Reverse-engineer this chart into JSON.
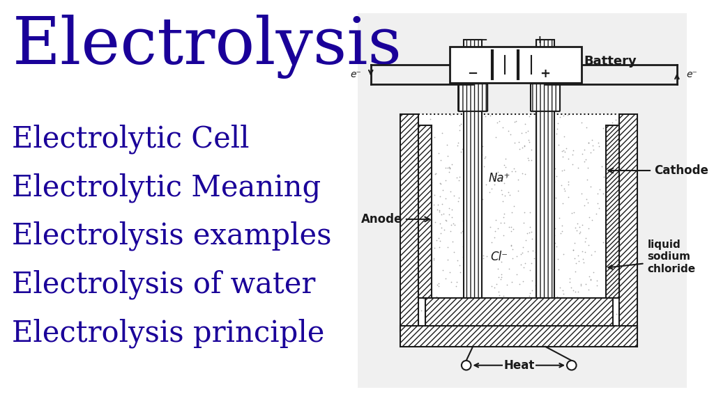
{
  "title": "Electrolysis",
  "title_color": "#1a0099",
  "title_fontsize": 68,
  "bg_color": "#ffffff",
  "text_color": "#1a0099",
  "menu_items": [
    "Electrolytic Cell",
    "Electrolytic Meaning",
    "Electrolysis examples",
    "Electrolysis of water",
    "Electrolysis principle"
  ],
  "menu_fontsize": 30,
  "diagram_bg": "#e8e8e8",
  "black": "#1a1a1a",
  "lw": 1.5,
  "hatch_lw": 0.5
}
